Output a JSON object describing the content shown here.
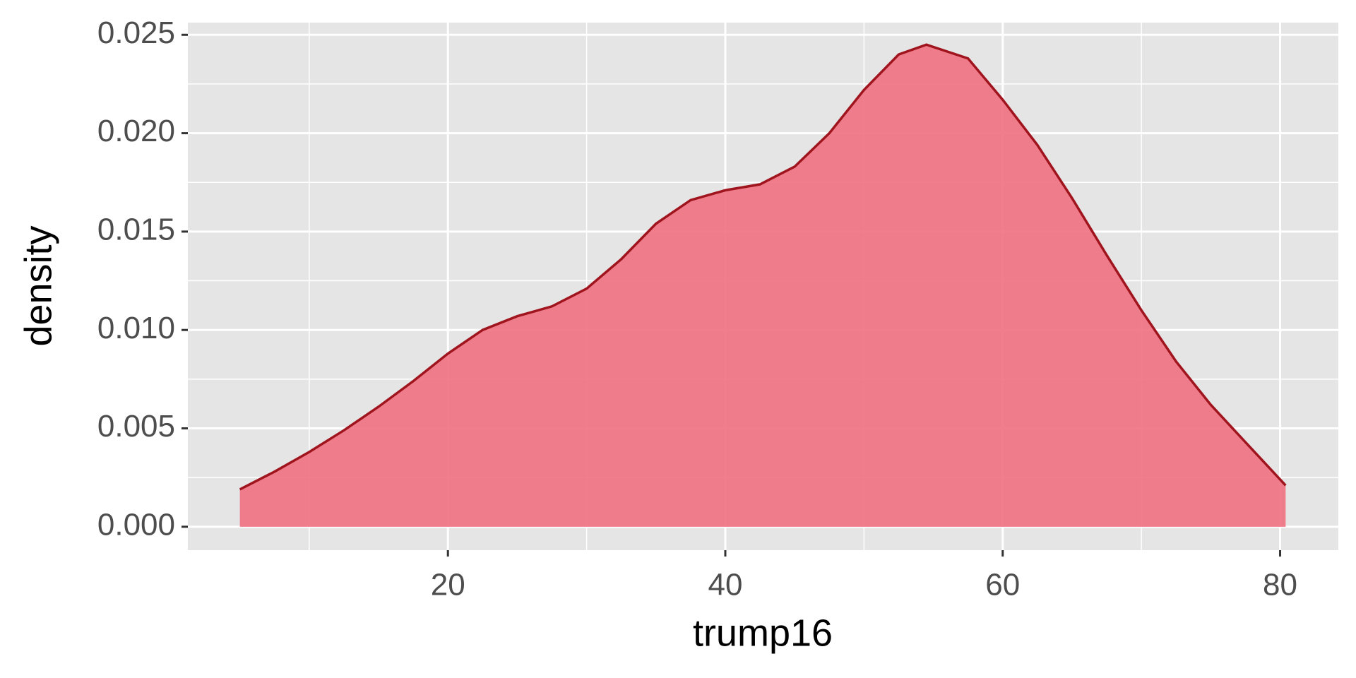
{
  "chart_data": {
    "type": "density",
    "x_label": "trump16",
    "y_label": "density",
    "x": [
      5,
      7.5,
      10,
      12.5,
      15,
      17.5,
      20,
      22.5,
      25,
      27.5,
      30,
      32.5,
      35,
      37.5,
      40,
      42.5,
      45,
      47.5,
      50,
      52.5,
      54.5,
      57.5,
      60,
      62.5,
      65,
      67.5,
      70,
      72.5,
      75,
      77.5,
      80.4
    ],
    "values": [
      0.0019,
      0.0028,
      0.0038,
      0.0049,
      0.0061,
      0.0074,
      0.0088,
      0.01,
      0.0107,
      0.0112,
      0.0121,
      0.0136,
      0.0154,
      0.0166,
      0.0171,
      0.0174,
      0.0183,
      0.02,
      0.0222,
      0.024,
      0.0245,
      0.0238,
      0.0217,
      0.0194,
      0.0167,
      0.0138,
      0.011,
      0.0084,
      0.0062,
      0.0043,
      0.0021
    ],
    "color": "#f0707f",
    "line_color": "#a0141e",
    "xlim": [
      1.25,
      84.2
    ],
    "ylim": [
      -0.00119,
      0.02562
    ],
    "xticks": [
      20,
      40,
      60,
      80
    ],
    "yticks": [
      {
        "value": 0,
        "label": "0.000"
      },
      {
        "value": 0.005,
        "label": "0.005"
      },
      {
        "value": 0.01,
        "label": "0.010"
      },
      {
        "value": 0.015,
        "label": "0.015"
      },
      {
        "value": 0.02,
        "label": "0.020"
      },
      {
        "value": 0.025,
        "label": "0.025"
      }
    ],
    "minor_xticks": [
      10,
      30,
      50,
      70
    ],
    "minor_yticks": [
      0.0025,
      0.0075,
      0.0125,
      0.0175,
      0.0225
    ],
    "grid": true
  }
}
